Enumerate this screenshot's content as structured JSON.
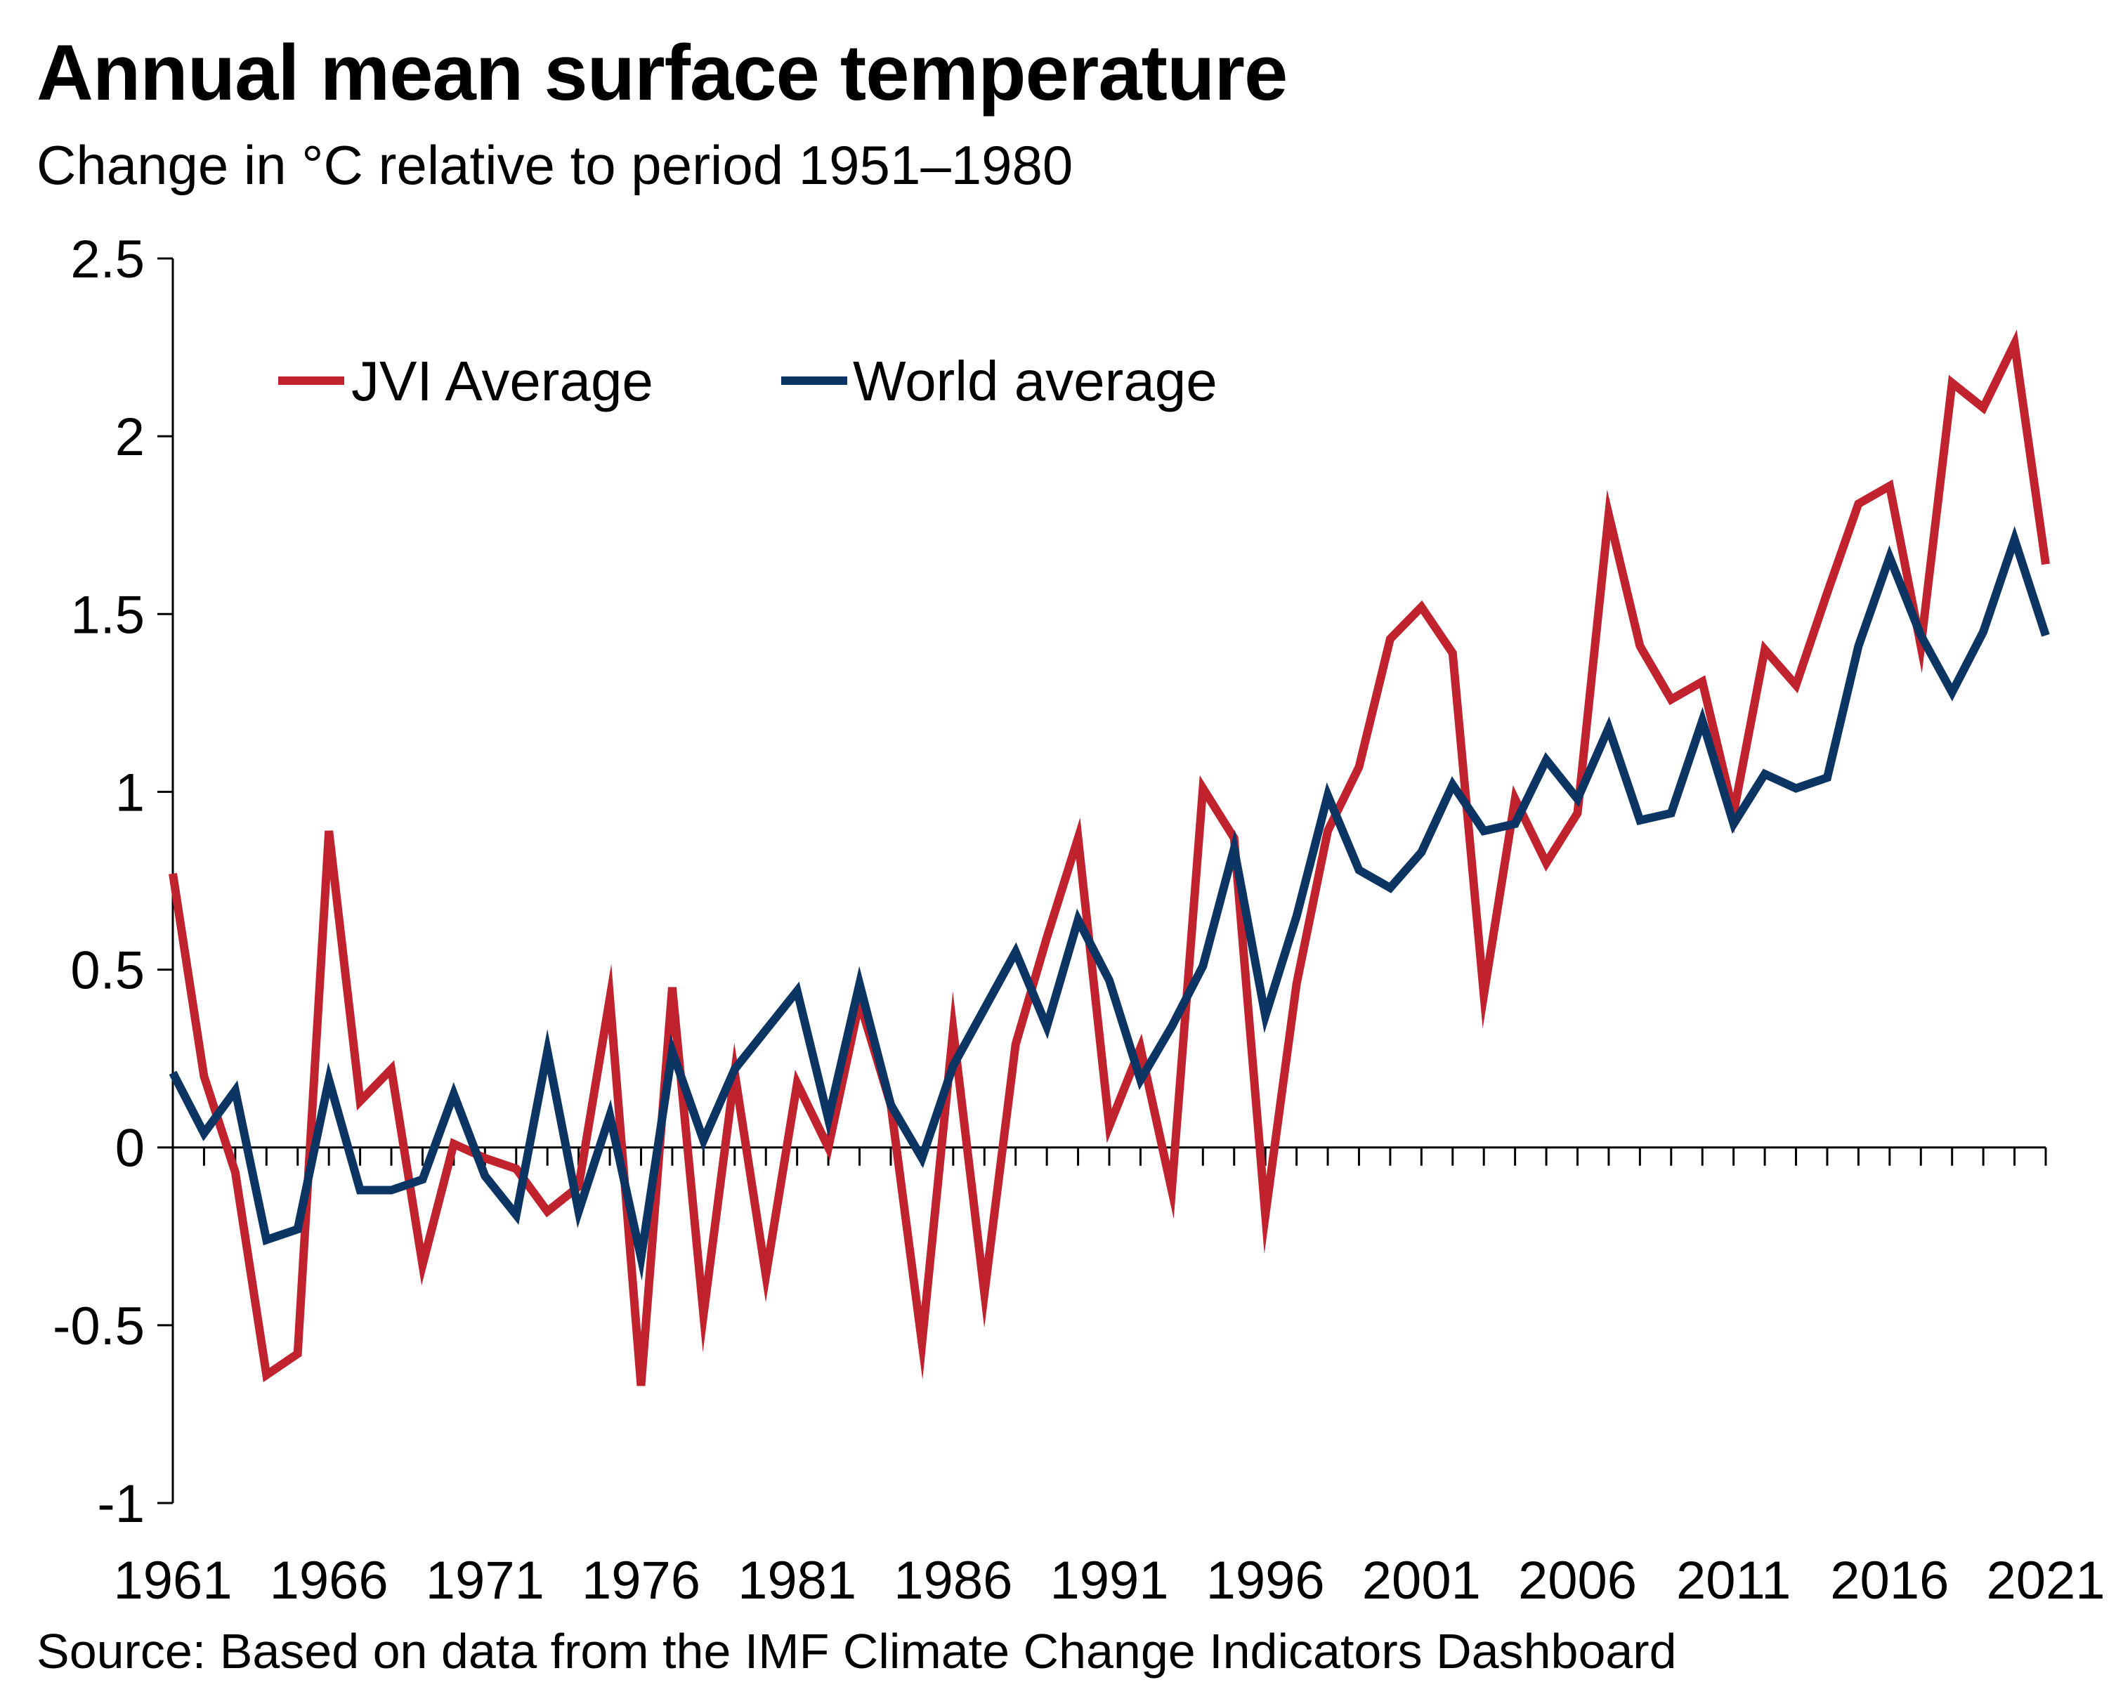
{
  "chart_data": {
    "type": "line",
    "title": "Annual mean surface temperature",
    "subtitle": "Change in °C relative to period 1951–1980",
    "source": "Source: Based on data from the IMF Climate Change Indicators Dashboard",
    "ylim": [
      -1,
      2.5
    ],
    "yticks": [
      "2.5",
      "2",
      "1.5",
      "1",
      "0.5",
      "0",
      "-0.5",
      "-1"
    ],
    "xticks": [
      "1961",
      "1966",
      "1971",
      "1976",
      "1981",
      "1986",
      "1991",
      "1996",
      "2001",
      "2006",
      "2011",
      "2016",
      "2021"
    ],
    "x": [
      1961,
      1962,
      1963,
      1964,
      1965,
      1966,
      1967,
      1968,
      1969,
      1970,
      1971,
      1972,
      1973,
      1974,
      1975,
      1976,
      1977,
      1978,
      1979,
      1980,
      1981,
      1982,
      1983,
      1984,
      1985,
      1986,
      1987,
      1988,
      1989,
      1990,
      1991,
      1992,
      1993,
      1994,
      1995,
      1996,
      1997,
      1998,
      1999,
      2000,
      2001,
      2002,
      2003,
      2004,
      2005,
      2006,
      2007,
      2008,
      2009,
      2010,
      2011,
      2012,
      2013,
      2014,
      2015,
      2016,
      2017,
      2018,
      2019,
      2020,
      2021
    ],
    "legend_position": "top-left",
    "grid": false,
    "series": [
      {
        "name": "JVI Average",
        "color": "#c0232e",
        "values": [
          0.77,
          0.2,
          -0.07,
          -0.64,
          -0.58,
          0.89,
          0.13,
          0.22,
          -0.33,
          0.01,
          -0.03,
          -0.06,
          -0.18,
          -0.11,
          0.42,
          -0.67,
          0.45,
          -0.47,
          0.21,
          -0.36,
          0.18,
          0.0,
          0.41,
          0.12,
          -0.55,
          0.33,
          -0.41,
          0.29,
          0.59,
          0.87,
          0.06,
          0.28,
          -0.12,
          1.01,
          0.87,
          -0.19,
          0.46,
          0.89,
          1.07,
          1.43,
          1.52,
          1.39,
          0.43,
          0.98,
          0.8,
          0.94,
          1.78,
          1.41,
          1.26,
          1.31,
          0.94,
          1.4,
          1.3,
          1.56,
          1.81,
          1.86,
          1.41,
          2.15,
          2.08,
          2.26,
          1.64
        ]
      },
      {
        "name": "World average",
        "color": "#0c3564",
        "values": [
          0.21,
          0.04,
          0.16,
          -0.26,
          -0.23,
          0.19,
          -0.12,
          -0.12,
          -0.09,
          0.15,
          -0.08,
          -0.19,
          0.27,
          -0.18,
          0.09,
          -0.31,
          0.27,
          0.02,
          0.22,
          0.33,
          0.44,
          0.08,
          0.46,
          0.12,
          -0.03,
          0.23,
          0.39,
          0.55,
          0.34,
          0.64,
          0.47,
          0.19,
          0.34,
          0.51,
          0.84,
          0.37,
          0.65,
          0.99,
          0.78,
          0.73,
          0.83,
          1.02,
          0.89,
          0.91,
          1.09,
          0.98,
          1.18,
          0.92,
          0.94,
          1.2,
          0.91,
          1.05,
          1.01,
          1.04,
          1.41,
          1.66,
          1.44,
          1.28,
          1.45,
          1.71,
          1.44
        ]
      }
    ]
  }
}
